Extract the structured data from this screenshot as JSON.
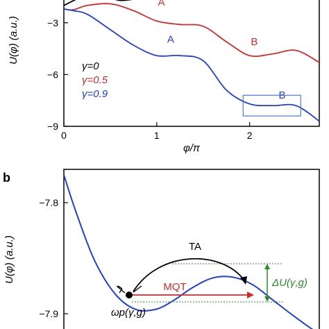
{
  "chart_data": [
    {
      "type": "line",
      "panel_label": "",
      "xlabel": "φ/π",
      "ylabel": "U(φ) (a.u.)",
      "xlim": [
        0,
        2.75
      ],
      "ylim": [
        -9,
        -1.6
      ],
      "xticks": [
        "0",
        "1",
        "2"
      ],
      "xtick_values": [
        0,
        1,
        2
      ],
      "yticks": [
        "−3",
        "−6",
        "−9"
      ],
      "ytick_values": [
        -3,
        -6,
        -9
      ],
      "legend_position": "left",
      "series": [
        {
          "name": "γ=0",
          "color": "#000000",
          "x": [
            0,
            0.2,
            0.4,
            0.6,
            0.8,
            1.0
          ],
          "y": [
            -2.0,
            -1.5,
            -1.4,
            -1.7,
            -1.6,
            -1.5
          ]
        },
        {
          "name": "γ=0.5",
          "color": "#d62a2a",
          "x": [
            0,
            0.1,
            0.25,
            0.5,
            0.75,
            1.0,
            1.25,
            1.5,
            1.75,
            2.0,
            2.25,
            2.5,
            2.75
          ],
          "y": [
            -2.2,
            -2.25,
            -2.0,
            -1.9,
            -2.3,
            -2.9,
            -3.1,
            -3.2,
            -4.1,
            -4.9,
            -4.8,
            -4.6,
            -5.3
          ]
        },
        {
          "name": "γ=0.9",
          "color": "#1f3fd6",
          "x": [
            0,
            0.1,
            0.25,
            0.5,
            0.75,
            1.0,
            1.25,
            1.5,
            1.75,
            2.0,
            2.25,
            2.5,
            2.75
          ],
          "y": [
            -2.2,
            -2.3,
            -2.5,
            -3.4,
            -4.3,
            -4.9,
            -4.9,
            -5.2,
            -6.9,
            -7.7,
            -7.8,
            -7.8,
            -8.7
          ]
        }
      ],
      "annotations": [
        {
          "text": "A",
          "color": "#d62a2a",
          "x": 1.05,
          "y": -2.0
        },
        {
          "text": "B",
          "color": "#d62a2a",
          "x": 2.05,
          "y": -4.3
        },
        {
          "text": "A",
          "color": "#1f3fd6",
          "x": 1.15,
          "y": -4.15
        },
        {
          "text": "B",
          "color": "#1f3fd6",
          "x": 2.35,
          "y": -7.4
        }
      ],
      "highlight_box": {
        "x": [
          1.93,
          2.55
        ],
        "y": [
          -7.2,
          -8.4
        ],
        "color": "#4a7ad6"
      }
    },
    {
      "type": "line",
      "panel_label": "b",
      "xlabel": "",
      "ylabel": "U(φ) (a.u.)",
      "ylim": [
        -7.92,
        -7.77
      ],
      "yticks": [
        "−7.8",
        "−7.9"
      ],
      "ytick_values": [
        -7.8,
        -7.9
      ],
      "series": [
        {
          "name": "",
          "color": "#1f3fd6",
          "x": [
            0.0,
            0.05,
            0.12,
            0.2,
            0.28,
            0.36,
            0.43,
            0.5,
            0.58,
            0.66,
            0.74,
            0.82,
            0.9,
            0.98,
            1.06
          ],
          "y": [
            -7.775,
            -7.81,
            -7.852,
            -7.882,
            -7.896,
            -7.896,
            -7.888,
            -7.877,
            -7.868,
            -7.867,
            -7.874,
            -7.888,
            -7.902,
            -7.915,
            -7.925
          ]
        }
      ],
      "annotations": [
        {
          "text": "TA",
          "color": "#000000"
        },
        {
          "text": "MQT",
          "color": "#d62a2a"
        },
        {
          "text": "ΔU(γ,g)",
          "color": "#2a8a2a"
        },
        {
          "text": "ωp(γ,g)",
          "color": "#000000"
        }
      ]
    }
  ]
}
